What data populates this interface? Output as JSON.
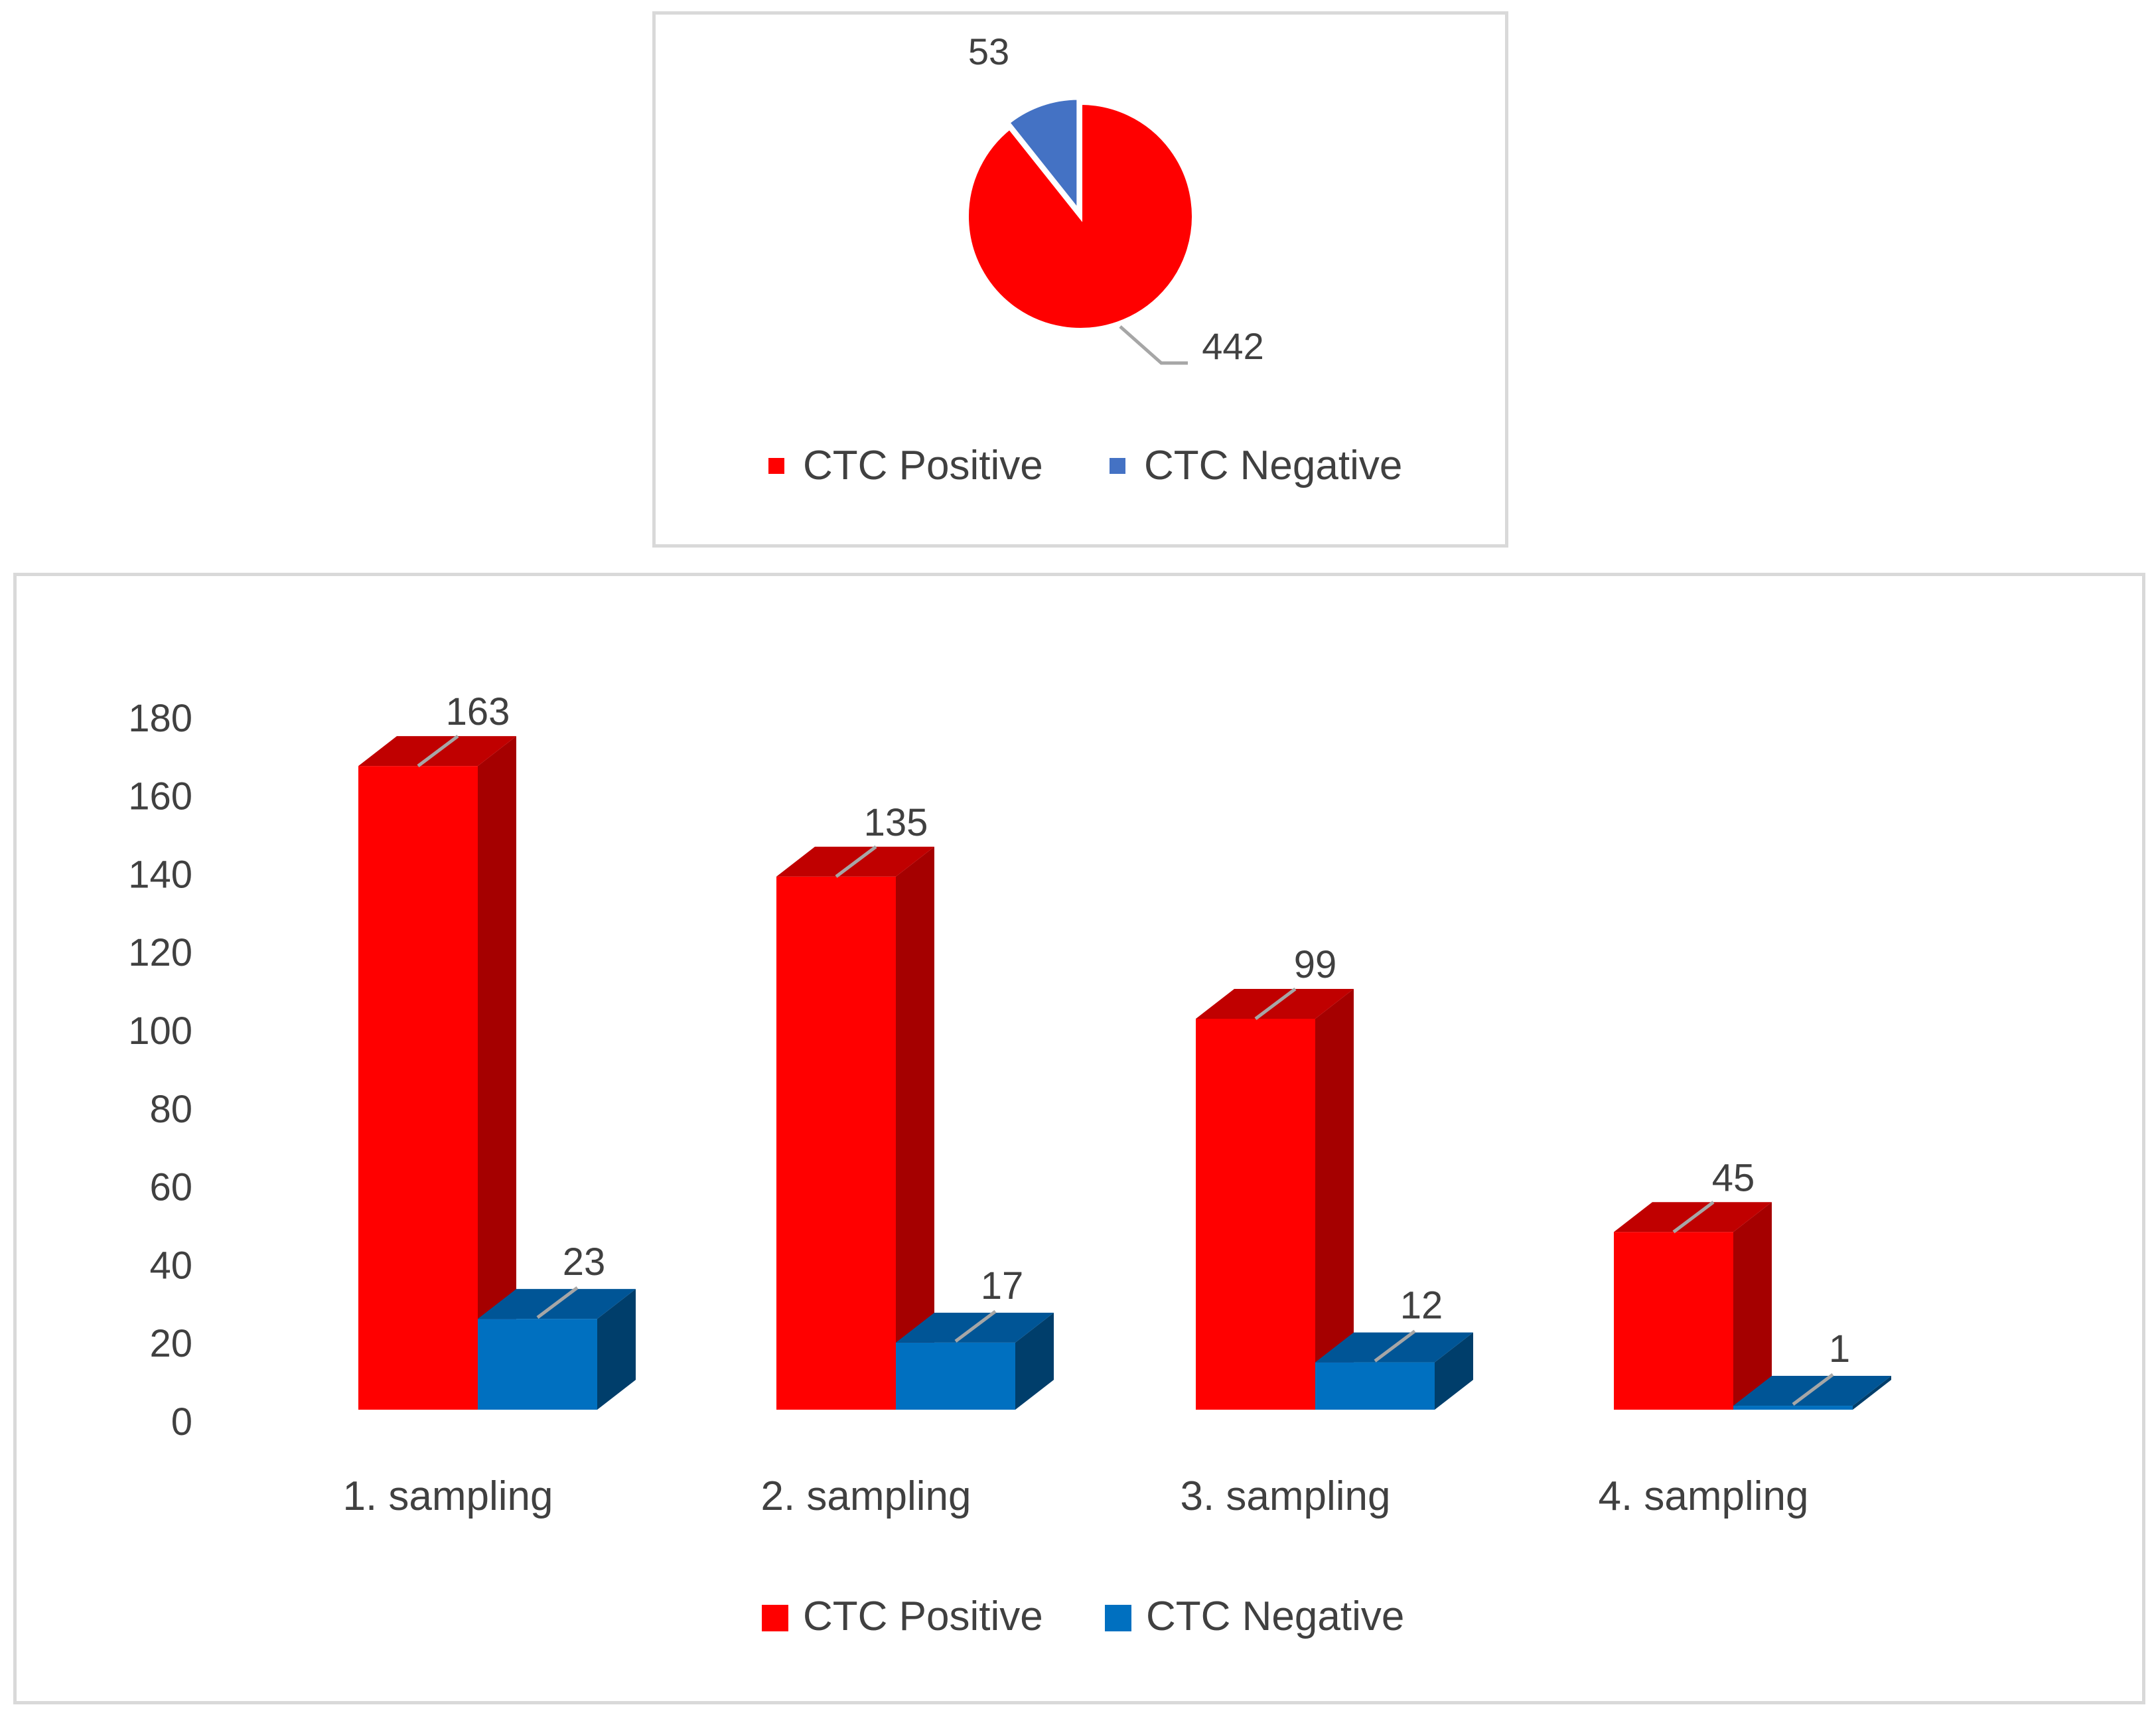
{
  "chart_data": [
    {
      "type": "pie",
      "title": "",
      "slices": [
        {
          "name": "CTC Positive",
          "value": 442,
          "color": "#ff0000"
        },
        {
          "name": "CTC Negative",
          "value": 53,
          "color": "#4472c4"
        }
      ],
      "legend": {
        "placement": "bottom",
        "items": [
          "CTC Positive",
          "CTC Negative"
        ]
      }
    },
    {
      "type": "bar",
      "subtype": "3d-clustered-column",
      "title": "",
      "categories": [
        "1. sampling",
        "2. sampling",
        "3. sampling",
        "4. sampling"
      ],
      "series": [
        {
          "name": "CTC Positive",
          "values": [
            163,
            135,
            99,
            45
          ],
          "color": "#ff0000",
          "side_color": "#a50000",
          "top_color": "#c00000"
        },
        {
          "name": "CTC Negative",
          "values": [
            23,
            17,
            12,
            1
          ],
          "color": "#0070c0",
          "side_color": "#003e6b",
          "top_color": "#005596"
        }
      ],
      "y_ticks": [
        "0",
        "20",
        "40",
        "60",
        "80",
        "100",
        "120",
        "140",
        "160",
        "180"
      ],
      "ylim": [
        0,
        180
      ],
      "xlabel": "",
      "ylabel": "",
      "grid": false,
      "legend": {
        "placement": "bottom",
        "items": [
          "CTC Positive",
          "CTC Negative"
        ]
      }
    }
  ]
}
